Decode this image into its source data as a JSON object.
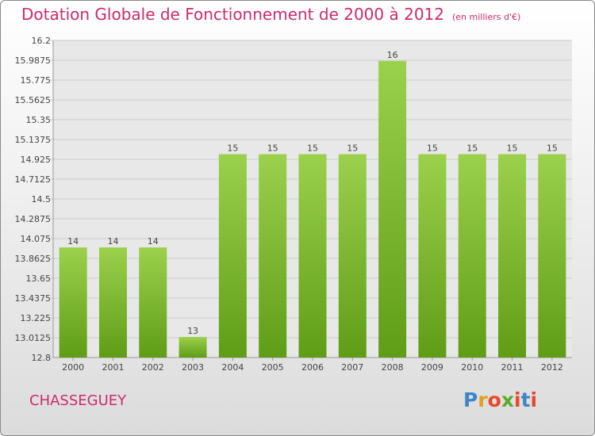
{
  "title": "Dotation Globale de Fonctionnement de 2000 à 2012",
  "unit_note": "(en milliers d'€)",
  "town": "CHASSEGUEY",
  "logo": "Proxiti",
  "colors": {
    "title": "#cc2a6e",
    "bar_light": "#9bd14c",
    "bar_dark": "#5f9d16",
    "grid": "#cccccc"
  },
  "chart_data": {
    "type": "bar",
    "categories": [
      "2000",
      "2001",
      "2002",
      "2003",
      "2004",
      "2005",
      "2006",
      "2007",
      "2008",
      "2009",
      "2010",
      "2011",
      "2012"
    ],
    "values": [
      14,
      14,
      14,
      13,
      15,
      15,
      15,
      15,
      16,
      15,
      15,
      15,
      15
    ],
    "value_labels": [
      "14",
      "14",
      "14",
      "13",
      "15",
      "15",
      "15",
      "15",
      "16",
      "15",
      "15",
      "15",
      "15"
    ],
    "bar_tops": [
      13.98,
      13.98,
      13.98,
      13.02,
      14.98,
      14.98,
      14.98,
      14.98,
      15.98,
      14.98,
      14.98,
      14.98,
      14.98
    ],
    "yticks": [
      "12.8",
      "13.0125",
      "13.225",
      "13.4375",
      "13.65",
      "13.8625",
      "14.075",
      "14.2875",
      "14.5",
      "14.7125",
      "14.925",
      "15.1375",
      "15.35",
      "15.5625",
      "15.775",
      "15.9875",
      "16.2"
    ],
    "ylim": [
      12.8,
      16.2
    ],
    "grid": true,
    "title": "Dotation Globale de Fonctionnement de 2000 à 2012",
    "xlabel": "",
    "ylabel": ""
  }
}
